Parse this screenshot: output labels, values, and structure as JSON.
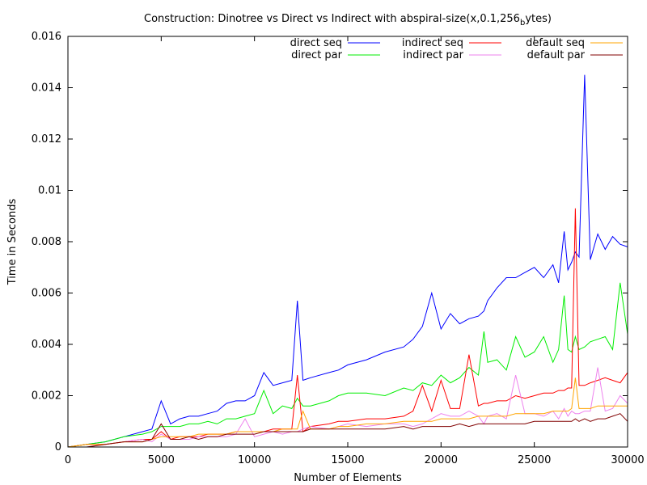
{
  "chart_data": {
    "type": "line",
    "title": "Construction: Dinotree vs Direct vs Indirect with abspiral-size(x,0.1,256",
    "title_subscript": "b",
    "title_suffix": "ytes)",
    "xlabel": "Number of Elements",
    "ylabel": "Time in Seconds",
    "xlim": [
      0,
      30000
    ],
    "ylim": [
      0,
      0.016
    ],
    "x_ticks": [
      0,
      5000,
      10000,
      15000,
      20000,
      25000,
      30000
    ],
    "x_tick_labels": [
      "0",
      "5000",
      "10000",
      "15000",
      "20000",
      "25000",
      "30000"
    ],
    "y_ticks": [
      0,
      0.002,
      0.004,
      0.006,
      0.008,
      0.01,
      0.012,
      0.014,
      0.016
    ],
    "y_tick_labels": [
      "0",
      "0.002",
      "0.004",
      "0.006",
      "0.008",
      "0.01",
      "0.012",
      "0.014",
      "0.016"
    ],
    "grid": false,
    "legend_position": "top-right",
    "x": [
      0,
      1000,
      2000,
      3000,
      4000,
      4500,
      5000,
      5500,
      6000,
      6500,
      7000,
      7500,
      8000,
      8500,
      9000,
      9500,
      10000,
      10500,
      11000,
      11500,
      12000,
      12300,
      12600,
      13000,
      14000,
      14500,
      15000,
      16000,
      17000,
      18000,
      18500,
      19000,
      19500,
      20000,
      20500,
      21000,
      21500,
      22000,
      22300,
      22500,
      23000,
      23500,
      24000,
      24500,
      25000,
      25500,
      26000,
      26300,
      26600,
      26800,
      27000,
      27200,
      27400,
      27700,
      28000,
      28400,
      28800,
      29200,
      29600,
      30000
    ],
    "series": [
      {
        "name": "direct seq",
        "color": "#0000ff",
        "values": [
          0,
          0.0001,
          0.0002,
          0.0004,
          0.0006,
          0.0007,
          0.0018,
          0.0009,
          0.0011,
          0.0012,
          0.0012,
          0.0013,
          0.0014,
          0.0017,
          0.0018,
          0.0018,
          0.002,
          0.0029,
          0.0024,
          0.0025,
          0.0026,
          0.0057,
          0.0026,
          0.0027,
          0.0029,
          0.003,
          0.0032,
          0.0034,
          0.0037,
          0.0039,
          0.0042,
          0.0047,
          0.006,
          0.0046,
          0.0052,
          0.0048,
          0.005,
          0.0051,
          0.0053,
          0.0057,
          0.0062,
          0.0066,
          0.0066,
          0.0068,
          0.007,
          0.0066,
          0.0071,
          0.0064,
          0.0084,
          0.0069,
          0.0072,
          0.0076,
          0.0074,
          0.0145,
          0.0073,
          0.0083,
          0.0077,
          0.0082,
          0.0079,
          0.0078
        ]
      },
      {
        "name": "direct par",
        "color": "#00ee00",
        "values": [
          0,
          0.0001,
          0.0002,
          0.0004,
          0.0005,
          0.0006,
          0.0008,
          0.0008,
          0.0008,
          0.0009,
          0.0009,
          0.001,
          0.0009,
          0.0011,
          0.0011,
          0.0012,
          0.0013,
          0.0022,
          0.0013,
          0.0016,
          0.0015,
          0.0019,
          0.0016,
          0.0016,
          0.0018,
          0.002,
          0.0021,
          0.0021,
          0.002,
          0.0023,
          0.0022,
          0.0025,
          0.0024,
          0.0028,
          0.0025,
          0.0027,
          0.0031,
          0.0028,
          0.0045,
          0.0033,
          0.0034,
          0.003,
          0.0043,
          0.0035,
          0.0037,
          0.0043,
          0.0033,
          0.0038,
          0.0059,
          0.0038,
          0.0037,
          0.0043,
          0.0038,
          0.0039,
          0.0041,
          0.0042,
          0.0043,
          0.0038,
          0.0064,
          0.0044
        ]
      },
      {
        "name": "indirect seq",
        "color": "#ff0000",
        "values": [
          0,
          0.0001,
          0.0001,
          0.0002,
          0.0003,
          0.0003,
          0.0006,
          0.0003,
          0.0004,
          0.0004,
          0.0004,
          0.0005,
          0.0005,
          0.0005,
          0.0006,
          0.0006,
          0.0006,
          0.0006,
          0.0007,
          0.0007,
          0.0007,
          0.0028,
          0.0006,
          0.0008,
          0.0009,
          0.001,
          0.001,
          0.0011,
          0.0011,
          0.0012,
          0.0014,
          0.0024,
          0.0014,
          0.0026,
          0.0015,
          0.0015,
          0.0036,
          0.0016,
          0.0017,
          0.0017,
          0.0018,
          0.0018,
          0.002,
          0.0019,
          0.002,
          0.0021,
          0.0021,
          0.0022,
          0.0022,
          0.0023,
          0.0023,
          0.0093,
          0.0024,
          0.0024,
          0.0025,
          0.0026,
          0.0027,
          0.0026,
          0.0025,
          0.0029
        ]
      },
      {
        "name": "indirect par",
        "color": "#ee82ee",
        "values": [
          0,
          0,
          0.0001,
          0.0002,
          0.0003,
          0.0002,
          0.0005,
          0.0003,
          0.0003,
          0.0003,
          0.0004,
          0.0004,
          0.0004,
          0.0004,
          0.0005,
          0.0011,
          0.0004,
          0.0005,
          0.0006,
          0.0005,
          0.0006,
          0.0006,
          0.0007,
          0.0008,
          0.0007,
          0.0008,
          0.0009,
          0.0008,
          0.0009,
          0.0009,
          0.0008,
          0.0009,
          0.0011,
          0.0013,
          0.0012,
          0.0012,
          0.0014,
          0.0012,
          0.0009,
          0.0012,
          0.0013,
          0.0011,
          0.0028,
          0.0013,
          0.0013,
          0.0012,
          0.0014,
          0.0011,
          0.0015,
          0.0012,
          0.0014,
          0.0013,
          0.0013,
          0.0014,
          0.0014,
          0.0031,
          0.0014,
          0.0015,
          0.002,
          0.0017
        ]
      },
      {
        "name": "default seq",
        "color": "#ffa500",
        "values": [
          0,
          0.0001,
          0.0001,
          0.0002,
          0.0002,
          0.0003,
          0.0004,
          0.0004,
          0.0004,
          0.0004,
          0.0005,
          0.0005,
          0.0005,
          0.0005,
          0.0006,
          0.0006,
          0.0006,
          0.0006,
          0.0006,
          0.0007,
          0.0007,
          0.0007,
          0.0014,
          0.0007,
          0.0007,
          0.0008,
          0.0008,
          0.0009,
          0.0009,
          0.001,
          0.001,
          0.001,
          0.001,
          0.0011,
          0.0011,
          0.0011,
          0.0011,
          0.0012,
          0.0012,
          0.0012,
          0.0012,
          0.0012,
          0.0013,
          0.0013,
          0.0013,
          0.0013,
          0.0014,
          0.0014,
          0.0014,
          0.0014,
          0.0015,
          0.0027,
          0.0015,
          0.0015,
          0.0015,
          0.0016,
          0.0016,
          0.0016,
          0.0016,
          0.0016
        ]
      },
      {
        "name": "default par",
        "color": "#800000",
        "values": [
          0,
          0,
          0.0001,
          0.0002,
          0.0002,
          0.0003,
          0.0009,
          0.0003,
          0.0003,
          0.0004,
          0.0003,
          0.0004,
          0.0004,
          0.0005,
          0.0005,
          0.0005,
          0.0005,
          0.0006,
          0.0006,
          0.0006,
          0.0006,
          0.0006,
          0.0006,
          0.0007,
          0.0007,
          0.0007,
          0.0007,
          0.0007,
          0.0007,
          0.0008,
          0.0007,
          0.0008,
          0.0008,
          0.0008,
          0.0008,
          0.0009,
          0.0008,
          0.0009,
          0.0009,
          0.0009,
          0.0009,
          0.0009,
          0.0009,
          0.0009,
          0.001,
          0.001,
          0.001,
          0.001,
          0.001,
          0.001,
          0.001,
          0.0011,
          0.001,
          0.0011,
          0.001,
          0.0011,
          0.0011,
          0.0012,
          0.0013,
          0.001
        ]
      }
    ]
  }
}
